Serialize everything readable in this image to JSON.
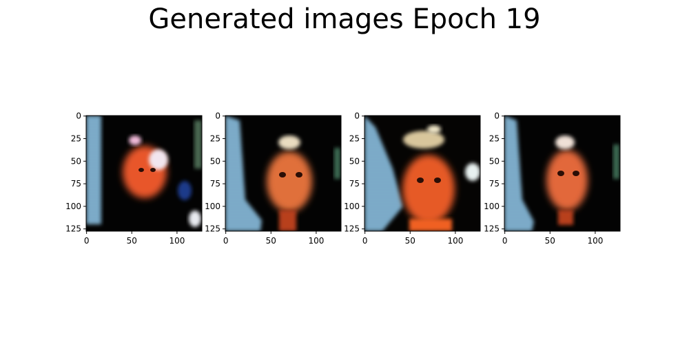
{
  "figure": {
    "title": "Generated images Epoch 19"
  },
  "axes": {
    "y_ticks": [
      "0",
      "25",
      "50",
      "75",
      "100",
      "125"
    ],
    "x_ticks": [
      "0",
      "50",
      "100"
    ],
    "y_tick_values": [
      0,
      25,
      50,
      75,
      100,
      125
    ],
    "x_tick_values": [
      0,
      50,
      100
    ],
    "image_size": [
      128,
      128
    ]
  },
  "images": [
    {
      "id": "sample-1",
      "description_colors": [
        "#7fb3d5",
        "#e8562a",
        "#f2e6ef",
        "#1b3a8a"
      ]
    },
    {
      "id": "sample-2",
      "description_colors": [
        "#6ea6c9",
        "#e0703a",
        "#e9dcc0"
      ]
    },
    {
      "id": "sample-3",
      "description_colors": [
        "#79b1d4",
        "#e65a26",
        "#f0e6c8",
        "#e8f1f0"
      ]
    },
    {
      "id": "sample-4",
      "description_colors": [
        "#74aacf",
        "#e2683a",
        "#efe0d6"
      ]
    }
  ]
}
